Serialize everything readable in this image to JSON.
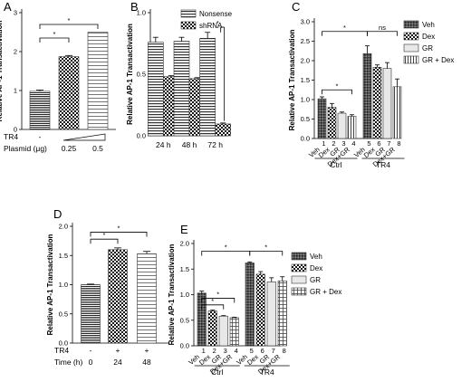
{
  "chart_data": [
    {
      "panel": "A",
      "type": "bar",
      "ylabel": "Relative AP-1 Transactivation",
      "ylim": [
        0,
        3.0
      ],
      "yticks": [
        "0",
        "1",
        "2",
        "3"
      ],
      "bars": [
        {
          "value": 0.98,
          "err": 0.03,
          "pattern": "hlines-dense"
        },
        {
          "value": 1.87,
          "err": 0.03,
          "pattern": "checker"
        },
        {
          "value": 2.5,
          "err": 0.0,
          "pattern": "hlines-sparse"
        }
      ],
      "condition_rows": [
        {
          "label": "TR4",
          "values": [
            "-",
            "",
            ""
          ]
        },
        {
          "label": "Plasmid (μg)",
          "values": [
            "",
            "0.25",
            "0.5"
          ]
        }
      ],
      "significance": [
        {
          "from": 0,
          "to": 1,
          "label": "*"
        },
        {
          "from": 0,
          "to": 2,
          "label": "*"
        }
      ]
    },
    {
      "panel": "B",
      "type": "bar",
      "ylabel": "Relative AP-1 Transactivation",
      "ylim": [
        0,
        1.25
      ],
      "yticks": [
        "0.0",
        "0.5",
        "1.0"
      ],
      "categories": [
        "24 h",
        "48 h",
        "72 h"
      ],
      "series": [
        {
          "name": "Nonsense",
          "pattern": "hlines",
          "values": [
            0.95,
            0.96,
            0.99
          ],
          "err": [
            0.05,
            0.04,
            0.06
          ]
        },
        {
          "name": "shRNA",
          "pattern": "checker",
          "values": [
            0.6,
            0.58,
            0.12
          ],
          "err": [
            0.01,
            0.01,
            0.01
          ]
        }
      ],
      "significance": [
        {
          "group": 2,
          "label": "*"
        }
      ]
    },
    {
      "panel": "C",
      "type": "bar",
      "ylabel": "Relative AP-1 Transactivation",
      "ylim": [
        0,
        3.0
      ],
      "yticks": [
        "0.0",
        "0.5",
        "1.0",
        "1.5",
        "2.0",
        "2.5",
        "3.0"
      ],
      "legend": [
        "Veh",
        "Dex",
        "GR",
        "GR + Dex"
      ],
      "bar_labels": [
        "Veh",
        "Dex",
        "GR",
        "Dex+GR",
        "Veh",
        "Dex",
        "GR",
        "Dex+GR"
      ],
      "bar_numbers": [
        "1",
        "2",
        "3",
        "4",
        "5",
        "6",
        "7",
        "8"
      ],
      "values": [
        1.02,
        0.8,
        0.65,
        0.57,
        2.18,
        1.83,
        1.8,
        1.33
      ],
      "err": [
        0.05,
        0.1,
        0.03,
        0.04,
        0.2,
        0.06,
        0.15,
        0.2
      ],
      "groups": [
        "Ctrl",
        "TR4"
      ],
      "significance": [
        {
          "from": 0,
          "to": 3,
          "label": "*"
        },
        {
          "from": 0,
          "to": 4,
          "label": "*"
        },
        {
          "from": 4,
          "to": 7,
          "label": "ns"
        }
      ]
    },
    {
      "panel": "D",
      "type": "bar",
      "ylabel": "Relative AP-1 Transactivation",
      "ylim": [
        0,
        2.0
      ],
      "yticks": [
        "0.0",
        "0.5",
        "1.0",
        "1.5",
        "2.0"
      ],
      "bars": [
        {
          "value": 1.0,
          "err": 0.01,
          "pattern": "hlines-dense"
        },
        {
          "value": 1.6,
          "err": 0.03,
          "pattern": "checker"
        },
        {
          "value": 1.53,
          "err": 0.04,
          "pattern": "hlines-sparse"
        }
      ],
      "condition_rows": [
        {
          "label": "TR4",
          "values": [
            "-",
            "+",
            "+"
          ]
        },
        {
          "label": "Time (h)",
          "values": [
            "0",
            "24",
            "48"
          ]
        }
      ],
      "significance": [
        {
          "from": 0,
          "to": 1,
          "label": "*"
        },
        {
          "from": 0,
          "to": 2,
          "label": "*"
        }
      ]
    },
    {
      "panel": "E",
      "type": "bar",
      "ylabel": "Relative AP-1 Transactivation",
      "ylim": [
        0,
        2.0
      ],
      "yticks": [
        "0.0",
        "0.5",
        "1.0",
        "1.5",
        "2.0"
      ],
      "legend": [
        "Veh",
        "Dex",
        "GR",
        "GR + Dex"
      ],
      "bar_labels": [
        "Veh",
        "Dex",
        "GR",
        "Dex+GR",
        "Veh",
        "Dex",
        "GR",
        "Dex+GR"
      ],
      "bar_numbers": [
        "1",
        "2",
        "3",
        "4",
        "5",
        "6",
        "7",
        "8"
      ],
      "values": [
        1.03,
        0.68,
        0.58,
        0.55,
        1.62,
        1.4,
        1.25,
        1.27
      ],
      "err": [
        0.04,
        0.02,
        0.01,
        0.01,
        0.02,
        0.05,
        0.08,
        0.08
      ],
      "groups": [
        "Ctrl",
        "TR4"
      ],
      "significance": [
        {
          "from": 0,
          "to": 2,
          "label": "*"
        },
        {
          "from": 0,
          "to": 3,
          "label": "*"
        },
        {
          "from": 0,
          "to": 4,
          "label": "*"
        },
        {
          "from": 4,
          "to": 7,
          "label": "*"
        }
      ]
    }
  ]
}
